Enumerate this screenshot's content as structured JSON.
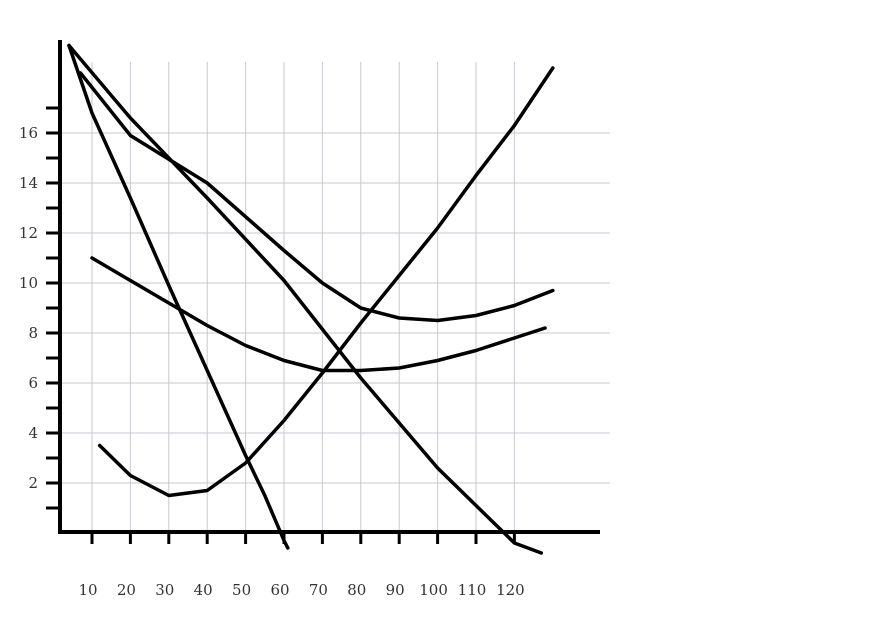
{
  "chart_data": {
    "type": "line",
    "title": "",
    "xlabel": "",
    "ylabel": "",
    "xlim": [
      2,
      132
    ],
    "ylim": [
      0,
      18.5
    ],
    "grid": true,
    "x_ticks": [
      10,
      20,
      30,
      40,
      50,
      60,
      70,
      80,
      90,
      100,
      110,
      120
    ],
    "y_ticks": [
      2,
      4,
      6,
      8,
      10,
      12,
      14,
      16
    ],
    "line_color": "#000000",
    "grid_color": "#c8c8d0",
    "series": [
      {
        "x": [
          4,
          10,
          20,
          30,
          40,
          50,
          55,
          60,
          61
        ],
        "y": [
          19.5,
          16.8,
          13.4,
          9.9,
          6.5,
          3.1,
          1.5,
          -0.3,
          -0.6
        ]
      },
      {
        "x": [
          4,
          20,
          40,
          60,
          80,
          100,
          120,
          127
        ],
        "y": [
          19.5,
          16.6,
          13.4,
          10.1,
          6.2,
          2.6,
          -0.4,
          -0.8
        ]
      },
      {
        "x": [
          7,
          20,
          40,
          60,
          70,
          80,
          90,
          100,
          110,
          120,
          130
        ],
        "y": [
          18.4,
          15.9,
          14.0,
          11.3,
          10.0,
          9.0,
          8.6,
          8.5,
          8.7,
          9.1,
          9.7
        ]
      },
      {
        "x": [
          10,
          20,
          30,
          40,
          50,
          60,
          70,
          80,
          90,
          100,
          110,
          120,
          128
        ],
        "y": [
          11.0,
          10.1,
          9.2,
          8.3,
          7.5,
          6.9,
          6.5,
          6.5,
          6.6,
          6.9,
          7.3,
          7.8,
          8.2
        ]
      },
      {
        "x": [
          12,
          20,
          30,
          40,
          50,
          60,
          70,
          80,
          90,
          100,
          110,
          120,
          130
        ],
        "y": [
          3.5,
          2.3,
          1.5,
          1.7,
          2.8,
          4.5,
          6.4,
          8.4,
          10.3,
          12.2,
          14.3,
          16.3,
          18.6
        ]
      }
    ]
  }
}
